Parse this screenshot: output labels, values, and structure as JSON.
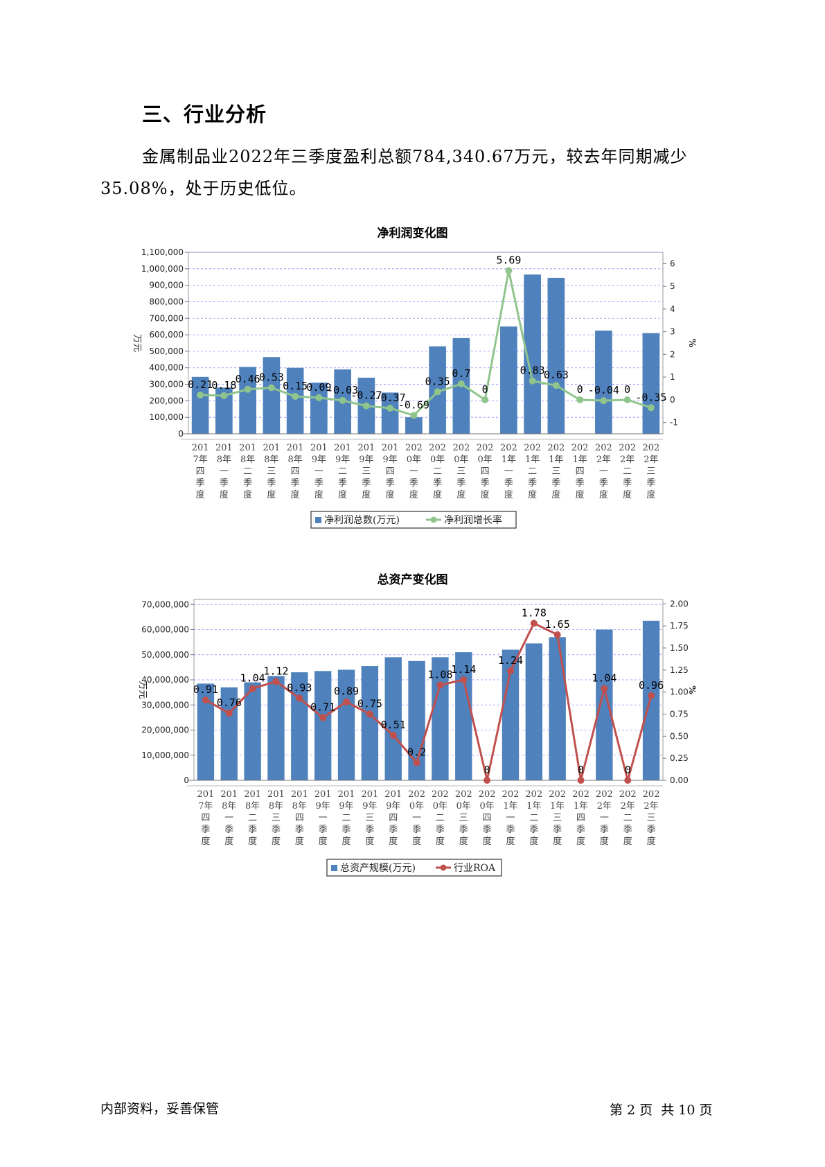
{
  "section": {
    "heading": "三、行业分析"
  },
  "paragraph": {
    "text": "金属制品业2022年三季度盈利总额784,340.67万元，较去年同期减少35.08%，处于历史低位。"
  },
  "footer": {
    "left": "内部资料，妥善保管",
    "page_label": "第 2 页",
    "total_label": "共 10 页"
  },
  "chart_data": [
    {
      "type": "bar",
      "title": "净利润变化图",
      "categories": [
        "2017年四季度",
        "2018年一季度",
        "2018年二季度",
        "2018年三季度",
        "2018年四季度",
        "2019年一季度",
        "2019年二季度",
        "2019年三季度",
        "2019年四季度",
        "2020年一季度",
        "2020年二季度",
        "2020年三季度",
        "2020年四季度",
        "2021年一季度",
        "2021年二季度",
        "2021年三季度",
        "2021年四季度",
        "2022年一季度",
        "2022年二季度",
        "2022年三季度"
      ],
      "ylabel": "万元",
      "y2label": "%",
      "ylim": [
        0,
        1100000
      ],
      "y2lim": [
        -1.5,
        6.5
      ],
      "yticks": [
        "0",
        "100,000",
        "200,000",
        "300,000",
        "400,000",
        "500,000",
        "600,000",
        "700,000",
        "800,000",
        "900,000",
        "1,000,000",
        "1,100,000"
      ],
      "y2ticks": [
        "-1",
        "0",
        "1",
        "2",
        "3",
        "4",
        "5",
        "6"
      ],
      "grid": true,
      "legend": "bottom",
      "series": [
        {
          "name": "净利润总数(万元)",
          "type": "bar",
          "color": "#4f81bd",
          "values": [
            345000,
            280000,
            405000,
            465000,
            400000,
            310000,
            390000,
            340000,
            250000,
            100000,
            530000,
            580000,
            0,
            650000,
            965000,
            945000,
            0,
            625000,
            0,
            610000
          ]
        },
        {
          "name": "净利润增长率",
          "type": "line",
          "axis": "right",
          "color": "#8fc58c",
          "values": [
            0.21,
            0.18,
            0.46,
            0.53,
            0.15,
            0.09,
            -0.03,
            -0.27,
            -0.37,
            -0.69,
            0.35,
            0.7,
            0,
            5.69,
            0.83,
            0.63,
            0,
            -0.04,
            0,
            -0.35
          ],
          "labels": [
            "0.21",
            "0.18",
            "0.46",
            "0.53",
            "0.15",
            "0.09",
            "-0.03",
            "-0.27",
            "-0.37",
            "-0.69",
            "0.35",
            "0.7",
            "0",
            "5.69",
            "0.83",
            "0.63",
            "0",
            "-0.04",
            "0",
            "-0.35"
          ]
        }
      ]
    },
    {
      "type": "bar",
      "title": "总资产变化图",
      "categories": [
        "2017年四季度",
        "2018年一季度",
        "2018年二季度",
        "2018年三季度",
        "2018年四季度",
        "2019年一季度",
        "2019年二季度",
        "2019年三季度",
        "2019年四季度",
        "2020年一季度",
        "2020年二季度",
        "2020年三季度",
        "2020年四季度",
        "2021年一季度",
        "2021年二季度",
        "2021年三季度",
        "2021年四季度",
        "2022年一季度",
        "2022年二季度",
        "2022年三季度"
      ],
      "ylabel": "万元",
      "y2label": "%",
      "ylim": [
        0,
        72000000
      ],
      "y2lim": [
        0,
        2.05
      ],
      "yticks": [
        "0",
        "10,000,000",
        "20,000,000",
        "30,000,000",
        "40,000,000",
        "50,000,000",
        "60,000,000",
        "70,000,000"
      ],
      "y2ticks": [
        "0.00",
        "0.25",
        "0.50",
        "0.75",
        "1.00",
        "1.25",
        "1.50",
        "1.75",
        "2.00"
      ],
      "grid": true,
      "legend": "bottom",
      "series": [
        {
          "name": "总资产规模(万元)",
          "type": "bar",
          "color": "#4f81bd",
          "values": [
            38500000,
            37000000,
            39000000,
            41500000,
            43000000,
            43500000,
            44000000,
            45500000,
            49000000,
            47500000,
            49000000,
            51000000,
            0,
            52000000,
            54500000,
            57000000,
            0,
            60000000,
            0,
            63500000
          ]
        },
        {
          "name": "行业ROA",
          "type": "line",
          "axis": "right",
          "color": "#c0504d",
          "values": [
            0.91,
            0.76,
            1.04,
            1.12,
            0.93,
            0.71,
            0.89,
            0.75,
            0.51,
            0.2,
            1.08,
            1.14,
            0,
            1.24,
            1.78,
            1.65,
            0,
            1.04,
            0,
            0.96
          ],
          "labels": [
            "0.91",
            "0.76",
            "1.04",
            "1.12",
            "0.93",
            "0.71",
            "0.89",
            "0.75",
            "0.51",
            "0.2",
            "1.08",
            "1.14",
            "0",
            "1.24",
            "1.78",
            "1.65",
            "0",
            "1.04",
            "0",
            "0.96"
          ]
        }
      ]
    }
  ]
}
